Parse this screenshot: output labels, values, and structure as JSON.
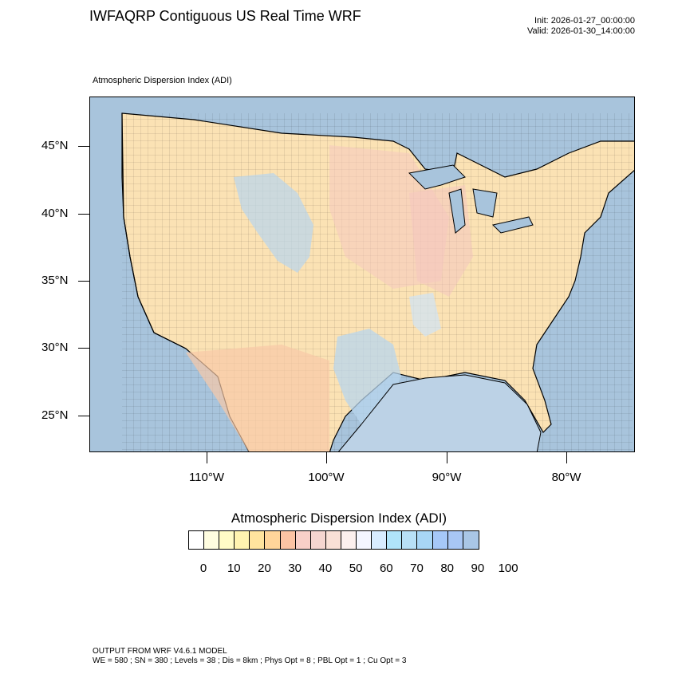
{
  "header": {
    "title": "IWFAQRP Contiguous US Real Time WRF",
    "init": "Init: 2026-01-27_00:00:00",
    "valid": "Valid: 2026-01-30_14:00:00"
  },
  "map": {
    "subtitle": "Atmospheric Dispersion Index   (ADI)",
    "latitude_labels": [
      "45°N",
      "40°N",
      "35°N",
      "30°N",
      "25°N"
    ],
    "longitude_labels": [
      "110°W",
      "100°W",
      "90°W",
      "80°W"
    ],
    "ocean_color": "#a8c4dc",
    "land_palette": [
      "#fde9b0",
      "#fbd6a2",
      "#f7c8c0",
      "#ffffff",
      "#b8d6ee"
    ]
  },
  "legend": {
    "title": "Atmospheric Dispersion Index  (ADI)",
    "colors": [
      "#ffffff",
      "#fffde0",
      "#fffbc6",
      "#fff3b0",
      "#ffe49e",
      "#ffd59a",
      "#fcc4a4",
      "#f8d0c8",
      "#f5d6d0",
      "#f9e0d6",
      "#fcf0ee",
      "#f4f6ff",
      "#d8ecff",
      "#b0e4fa",
      "#b8e0f6",
      "#a8d6f6",
      "#a6c8f8",
      "#a8c6f4",
      "#a9c6e6"
    ],
    "tick_labels": [
      "0",
      "10",
      "20",
      "30",
      "40",
      "50",
      "60",
      "70",
      "80",
      "90",
      "100"
    ]
  },
  "footer": {
    "line1": "OUTPUT FROM WRF V4.6.1 MODEL",
    "line2": "WE = 580 ; SN = 380 ; Levels = 38 ; Dis = 8km ; Phys Opt = 8 ; PBL Opt = 1 ; Cu Opt = 3"
  }
}
